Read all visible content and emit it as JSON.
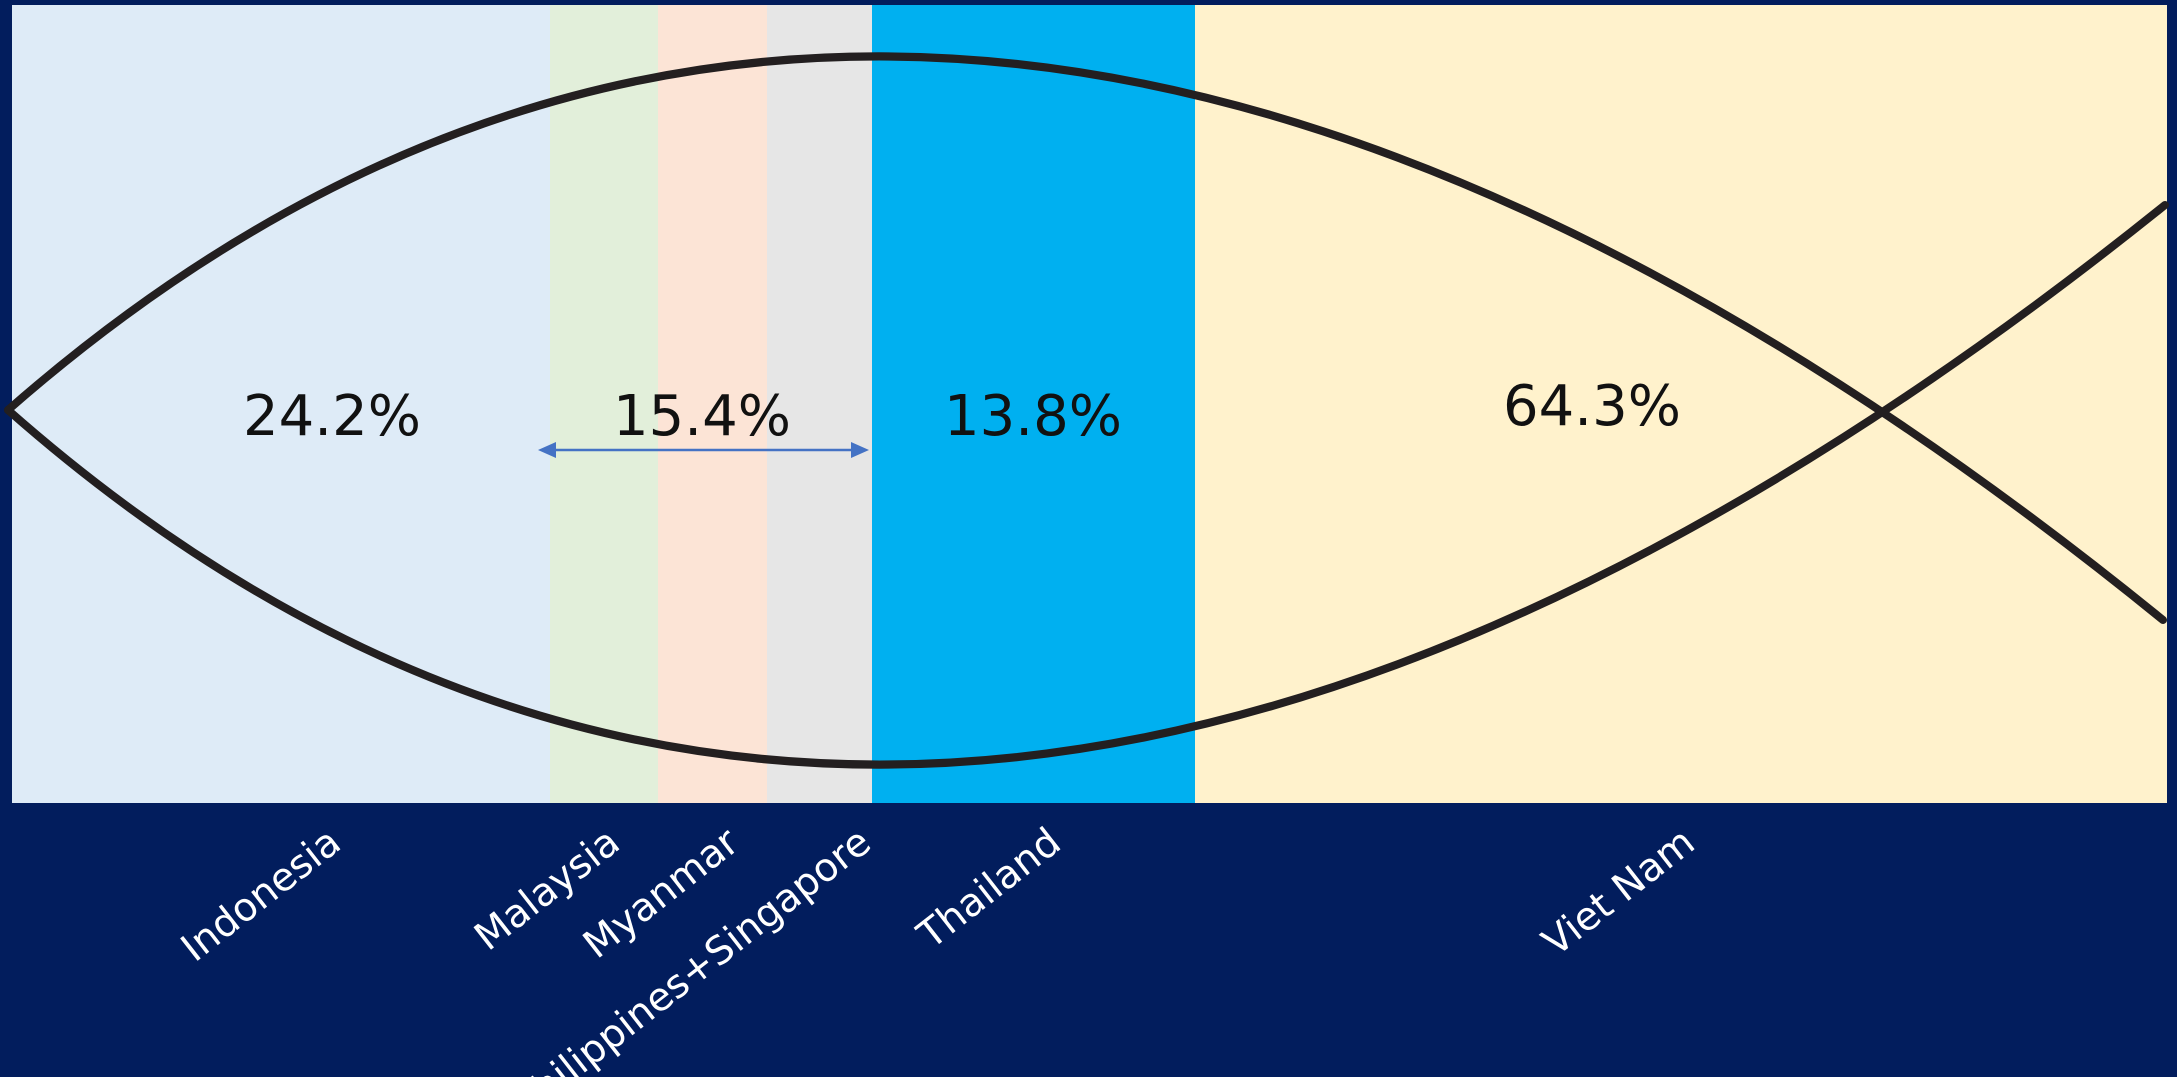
{
  "chart_data": {
    "type": "bar",
    "layout": "mekko-band",
    "segments": [
      {
        "label": "Indonesia",
        "color": "#deebf7"
      },
      {
        "label": "Malaysia",
        "color": "#e2efda"
      },
      {
        "label": "Myanmar",
        "color": "#fce4d6"
      },
      {
        "label": "Philippines+Singapore",
        "color": "#e6e6e6"
      },
      {
        "label": "Thailand",
        "color": "#00b0f0"
      },
      {
        "label": "Viet Nam",
        "color": "#fff2cc"
      }
    ],
    "value_labels": [
      {
        "text": "24.2%",
        "covers": [
          "Indonesia"
        ]
      },
      {
        "text": "15.4%",
        "covers": [
          "Malaysia",
          "Myanmar",
          "Philippines+Singapore"
        ],
        "bracket": "double-arrow"
      },
      {
        "text": "13.8%",
        "covers": [
          "Thailand"
        ]
      },
      {
        "text": "64.3%",
        "covers": [
          "Viet Nam"
        ]
      }
    ],
    "overlay": {
      "shape": "fish-outline",
      "stroke": "#231f20"
    },
    "background": "#021d5d",
    "title": "",
    "xlabel": "",
    "ylabel": ""
  }
}
